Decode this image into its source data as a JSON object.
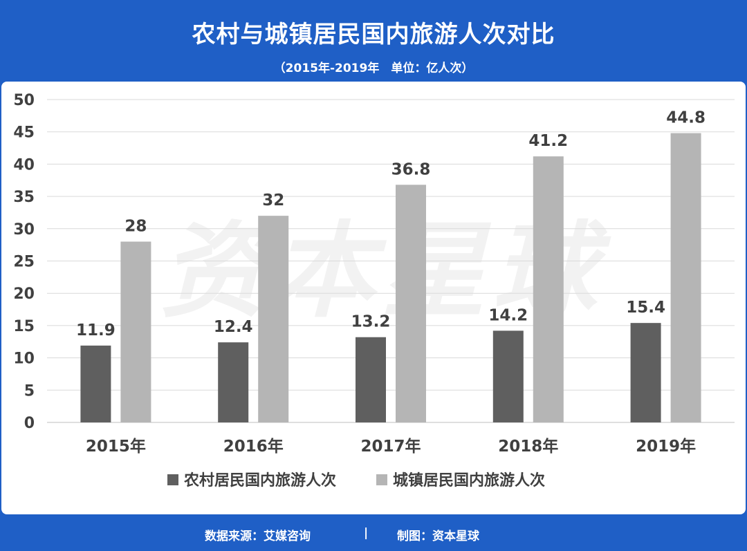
{
  "header": {
    "title": "农村与城镇居民国内旅游人次对比",
    "subtitle": "（2015年-2019年　单位：亿人次）"
  },
  "watermark": "资本星球",
  "footer": {
    "source": "数据来源：艾媒咨询",
    "divider": "|",
    "credit": "制图：资本星球"
  },
  "chart_data": {
    "type": "bar",
    "categories": [
      "2015年",
      "2016年",
      "2017年",
      "2018年",
      "2019年"
    ],
    "series": [
      {
        "name": "农村居民国内旅游人次",
        "values": [
          11.9,
          12.4,
          13.2,
          14.2,
          15.4
        ],
        "color": "#5f5f5f"
      },
      {
        "name": "城镇居民国内旅游人次",
        "values": [
          28,
          32,
          36.8,
          41.2,
          44.8
        ],
        "color": "#b5b5b5"
      }
    ],
    "ylim": [
      0,
      50
    ],
    "yticks": [
      0,
      5,
      10,
      15,
      20,
      25,
      30,
      35,
      40,
      45,
      50
    ],
    "grid": true,
    "legend": "bottom-center",
    "data_labels": true
  },
  "colors": {
    "header_bg": "#1f5fc6",
    "grid": "#d9d9d9",
    "text": "#404040"
  }
}
